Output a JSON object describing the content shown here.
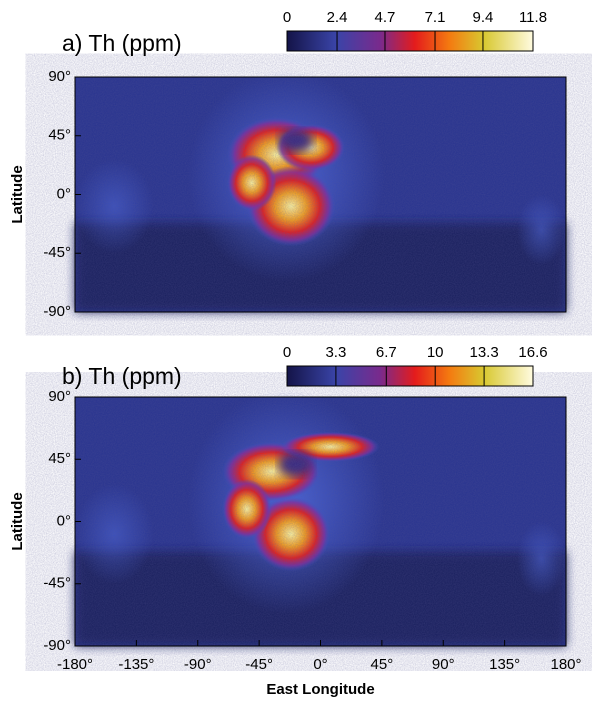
{
  "chart_data": [
    {
      "type": "heatmap",
      "title": "a) Th (ppm)",
      "ylabel": "Latitude",
      "ylim": [
        -90,
        90
      ],
      "yticks": [
        {
          "value": 90,
          "label": "90°"
        },
        {
          "value": 45,
          "label": "45°"
        },
        {
          "value": 0,
          "label": "0°"
        },
        {
          "value": -45,
          "label": "-45°"
        },
        {
          "value": -90,
          "label": "-90°"
        }
      ],
      "colorbar": {
        "lim": [
          0,
          11.8
        ],
        "ticks": [
          0,
          2.4,
          4.7,
          7.1,
          9.4,
          11.8
        ]
      }
    },
    {
      "type": "heatmap",
      "title": "b) Th (ppm)",
      "ylabel": "Latitude",
      "xlabel": "East Longitude",
      "xlim": [
        -180,
        180
      ],
      "xticks": [
        {
          "value": -180,
          "label": "-180°"
        },
        {
          "value": -135,
          "label": "-135°"
        },
        {
          "value": -90,
          "label": "-90°"
        },
        {
          "value": -45,
          "label": "-45°"
        },
        {
          "value": 0,
          "label": "0°"
        },
        {
          "value": 45,
          "label": "45°"
        },
        {
          "value": 90,
          "label": "90°"
        },
        {
          "value": 135,
          "label": "135°"
        },
        {
          "value": 180,
          "label": "180°"
        }
      ],
      "ylim": [
        -90,
        90
      ],
      "yticks": [
        {
          "value": 90,
          "label": "90°"
        },
        {
          "value": 45,
          "label": "45°"
        },
        {
          "value": 0,
          "label": "0°"
        },
        {
          "value": -45,
          "label": "-45°"
        },
        {
          "value": -90,
          "label": "-90°"
        }
      ],
      "colorbar": {
        "lim": [
          0,
          16.6
        ],
        "ticks": [
          0,
          3.3,
          6.7,
          10.0,
          13.3,
          16.6
        ]
      }
    }
  ]
}
